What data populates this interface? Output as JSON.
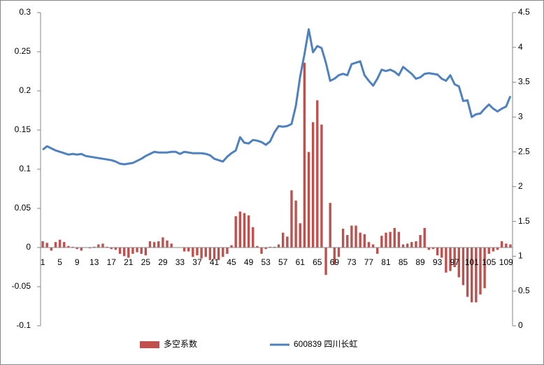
{
  "chart_data": {
    "type": "bar_line",
    "categories": [
      "1",
      null,
      null,
      null,
      "5",
      null,
      null,
      null,
      "9",
      null,
      null,
      null,
      "13",
      null,
      null,
      null,
      "17",
      null,
      null,
      null,
      "21",
      null,
      null,
      null,
      "25",
      null,
      null,
      null,
      "29",
      null,
      null,
      null,
      "33",
      null,
      null,
      null,
      "37",
      null,
      null,
      null,
      "41",
      null,
      null,
      null,
      "45",
      null,
      null,
      null,
      "49",
      null,
      null,
      null,
      "53",
      null,
      null,
      null,
      "57",
      null,
      null,
      null,
      "61",
      null,
      null,
      null,
      "65",
      null,
      null,
      null,
      "69",
      null,
      null,
      null,
      "73",
      null,
      null,
      null,
      "77",
      null,
      null,
      null,
      "81",
      null,
      null,
      null,
      "85",
      null,
      null,
      null,
      "89",
      null,
      null,
      null,
      "93",
      null,
      null,
      null,
      "97",
      null,
      null,
      null,
      "101",
      null,
      null,
      null,
      "105",
      null,
      null,
      null,
      "109",
      null
    ],
    "series": [
      {
        "name": "多空系数",
        "color": "#c0504d",
        "kind": "bar",
        "values": [
          0.008,
          0.006,
          -0.004,
          0.007,
          0.01,
          0.007,
          0.002,
          0.001,
          -0.002,
          -0.004,
          0.0,
          -0.001,
          0.001,
          0.004,
          0.005,
          0.001,
          -0.002,
          -0.003,
          -0.008,
          -0.011,
          -0.013,
          -0.008,
          -0.006,
          -0.008,
          -0.01,
          0.008,
          0.007,
          0.008,
          0.013,
          0.009,
          0.005,
          0.0,
          0.0,
          -0.005,
          -0.005,
          -0.012,
          -0.01,
          -0.014,
          -0.012,
          -0.016,
          -0.015,
          -0.016,
          -0.012,
          -0.008,
          0.003,
          0.04,
          0.046,
          0.044,
          0.041,
          0.026,
          0.002,
          -0.008,
          -0.002,
          0.001,
          0.001,
          0.004,
          0.019,
          0.014,
          0.073,
          0.06,
          0.031,
          0.236,
          0.122,
          0.16,
          0.188,
          0.157,
          -0.035,
          0.057,
          -0.022,
          -0.012,
          0.024,
          0.016,
          0.028,
          0.028,
          0.019,
          0.017,
          0.007,
          0.004,
          -0.008,
          0.015,
          0.019,
          0.02,
          0.025,
          0.02,
          0.004,
          0.005,
          0.007,
          0.008,
          0.016,
          0.025,
          -0.003,
          -0.002,
          -0.01,
          -0.013,
          -0.032,
          -0.03,
          -0.025,
          -0.038,
          -0.048,
          -0.063,
          -0.07,
          -0.07,
          -0.06,
          -0.052,
          -0.008,
          -0.005,
          -0.003,
          0.008,
          0.005,
          0.004
        ]
      },
      {
        "name": "600839 四川长虹",
        "color": "#4f81bd",
        "kind": "line",
        "axis": "y2",
        "values": [
          2.53,
          2.58,
          2.55,
          2.52,
          2.5,
          2.48,
          2.46,
          2.47,
          2.46,
          2.47,
          2.44,
          2.43,
          2.42,
          2.41,
          2.4,
          2.39,
          2.38,
          2.36,
          2.33,
          2.32,
          2.33,
          2.34,
          2.37,
          2.4,
          2.44,
          2.47,
          2.5,
          2.49,
          2.49,
          2.49,
          2.5,
          2.5,
          2.47,
          2.5,
          2.49,
          2.48,
          2.48,
          2.48,
          2.47,
          2.45,
          2.4,
          2.38,
          2.36,
          2.43,
          2.48,
          2.52,
          2.71,
          2.63,
          2.62,
          2.67,
          2.66,
          2.64,
          2.6,
          2.65,
          2.78,
          2.87,
          2.86,
          2.87,
          2.9,
          3.16,
          3.58,
          3.9,
          4.26,
          3.93,
          4.02,
          3.99,
          3.78,
          3.52,
          3.55,
          3.6,
          3.62,
          3.6,
          3.76,
          3.78,
          3.8,
          3.6,
          3.52,
          3.45,
          3.55,
          3.68,
          3.66,
          3.68,
          3.65,
          3.6,
          3.72,
          3.67,
          3.62,
          3.55,
          3.57,
          3.62,
          3.63,
          3.62,
          3.61,
          3.55,
          3.52,
          3.6,
          3.47,
          3.44,
          3.23,
          3.24,
          3.0,
          3.04,
          3.05,
          3.12,
          3.18,
          3.12,
          3.08,
          3.12,
          3.15,
          3.3
        ]
      }
    ],
    "ylim": [
      -0.1,
      0.3
    ],
    "yticks": [
      -0.1,
      -0.05,
      0,
      0.05,
      0.1,
      0.15,
      0.2,
      0.25,
      0.3
    ],
    "y2lim": [
      0,
      4.5
    ],
    "y2ticks": [
      0,
      0.5,
      1,
      1.5,
      2,
      2.5,
      3,
      3.5,
      4,
      4.5
    ],
    "legend": "bottom"
  }
}
